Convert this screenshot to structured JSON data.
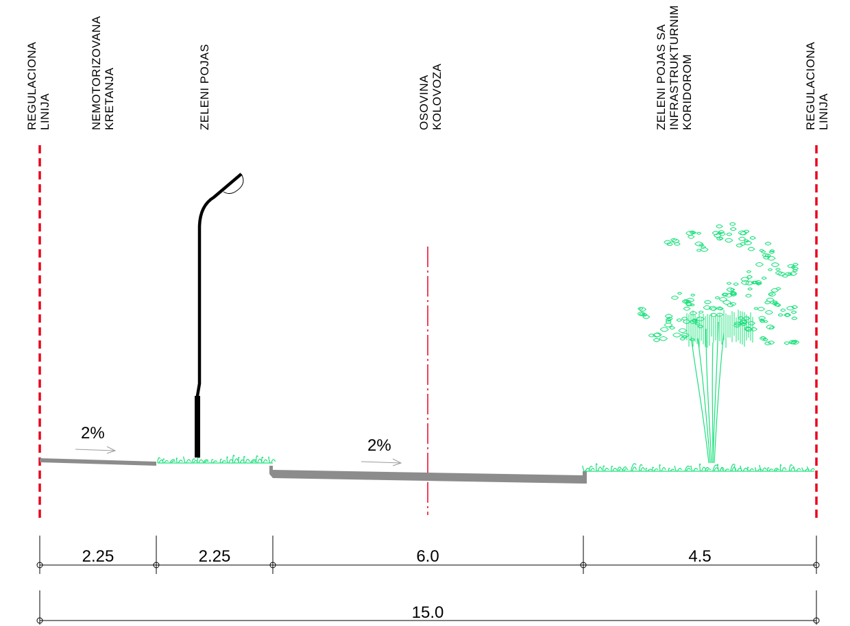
{
  "labels": {
    "left_line": [
      "REGULACIONA",
      "LINIJA"
    ],
    "pedestrian": [
      "NEMOTORIZOVANA",
      "KRETANJA"
    ],
    "green_belt": [
      "ZELENI POJAS"
    ],
    "axis": [
      "OSOVINA",
      "KOLOVOZA"
    ],
    "green_corridor": [
      "ZELENI POJAS SA",
      "INFRASTRUKTURNIM",
      "KORIDOROM"
    ],
    "right_line": [
      "REGULACIONA",
      "LINIJA"
    ]
  },
  "slopes": {
    "sidewalk": "2%",
    "road": "2%"
  },
  "dimensions": {
    "segments": [
      "2.25",
      "2.25",
      "6.0",
      "4.5"
    ],
    "total": "15.0"
  },
  "colors": {
    "regulation_line": "#e8001c",
    "axis_line": "#e8001c",
    "pavement": "#8c8c8c",
    "vegetation": "#19e07a",
    "ink": "#000000",
    "arrow": "#9a9a9a"
  }
}
